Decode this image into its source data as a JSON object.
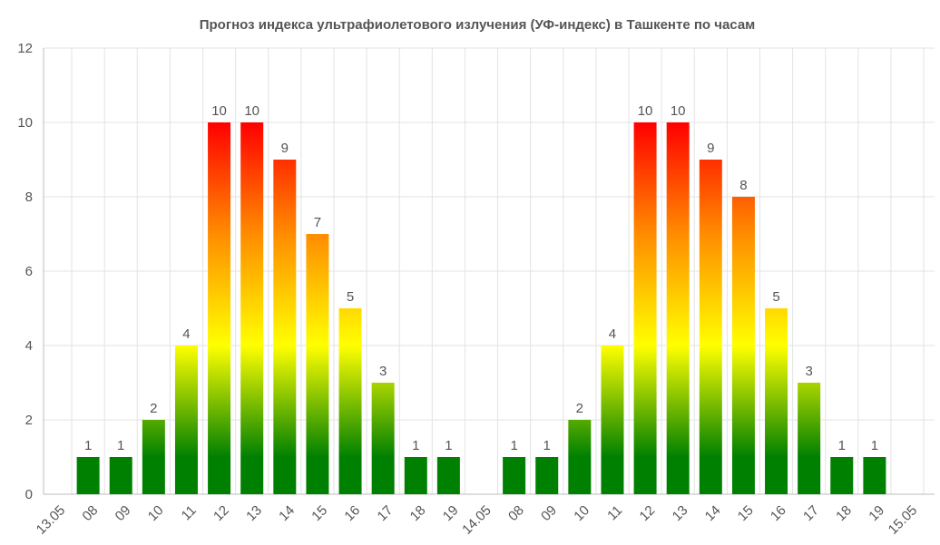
{
  "chart_data": {
    "type": "bar",
    "title": "Прогноз индекса ультрафиолетового излучения (УФ-индекс) в Ташкенте по часам",
    "xlabel": "",
    "ylabel": "",
    "ylim": [
      0,
      12
    ],
    "yticks": [
      "0",
      "2",
      "4",
      "6",
      "8",
      "10",
      "12"
    ],
    "grid": true,
    "categories": [
      "13.05",
      "08",
      "09",
      "10",
      "11",
      "12",
      "13",
      "14",
      "15",
      "16",
      "17",
      "18",
      "19",
      "14.05",
      "08",
      "09",
      "10",
      "11",
      "12",
      "13",
      "14",
      "15",
      "16",
      "17",
      "18",
      "19",
      "15.05"
    ],
    "values": [
      null,
      1,
      1,
      2,
      4,
      10,
      10,
      9,
      7,
      5,
      3,
      1,
      1,
      null,
      1,
      1,
      2,
      4,
      10,
      10,
      9,
      8,
      5,
      3,
      1,
      1,
      null
    ],
    "colors": {
      "top": "#ff0000",
      "mid_orange": "#ff8c00",
      "mid_yellow": "#ffff00",
      "bottom": "#008000"
    }
  }
}
